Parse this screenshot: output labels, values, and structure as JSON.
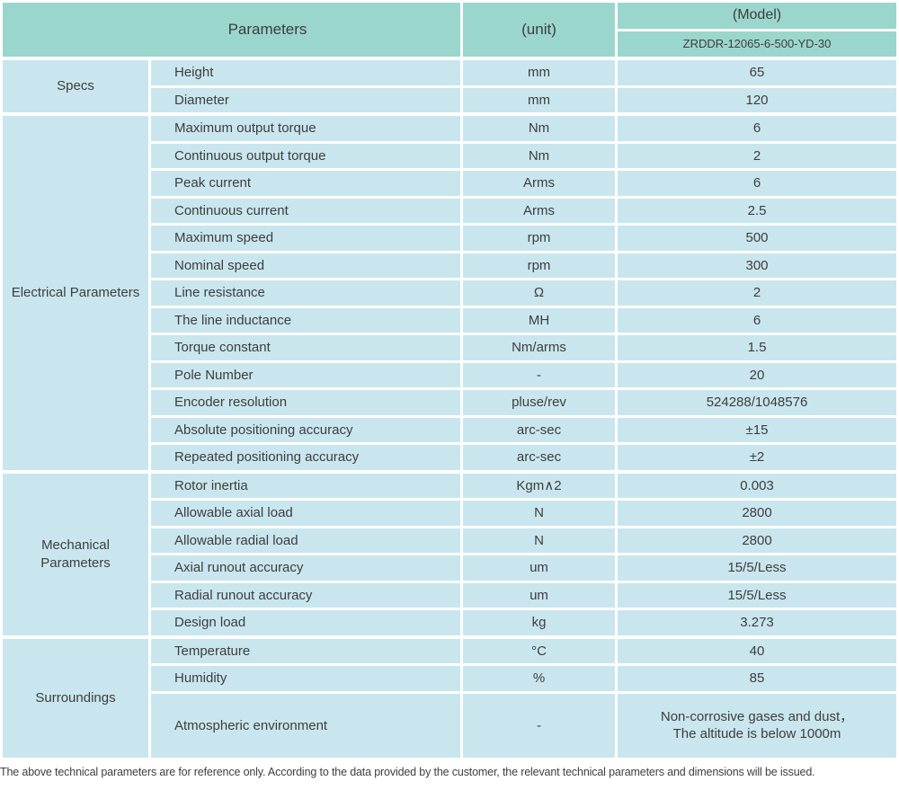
{
  "table": {
    "header": {
      "parameters_label": "Parameters",
      "unit_label": "(unit)",
      "model_label": "(Model)",
      "model_value": "ZRDDR-12065-6-500-YD-30"
    },
    "sections": [
      {
        "name": "Specs",
        "rows": [
          {
            "param": "Height",
            "unit": "mm",
            "value": "65"
          },
          {
            "param": "Diameter",
            "unit": "mm",
            "value": "120"
          }
        ]
      },
      {
        "name": "Electrical Parameters",
        "rows": [
          {
            "param": "Maximum output torque",
            "unit": "Nm",
            "value": "6"
          },
          {
            "param": "Continuous output torque",
            "unit": "Nm",
            "value": "2"
          },
          {
            "param": "Peak current",
            "unit": "Arms",
            "value": "6"
          },
          {
            "param": "Continuous current",
            "unit": "Arms",
            "value": "2.5"
          },
          {
            "param": "Maximum speed",
            "unit": "rpm",
            "value": "500"
          },
          {
            "param": "Nominal speed",
            "unit": "rpm",
            "value": "300"
          },
          {
            "param": "Line resistance",
            "unit": "Ω",
            "value": "2"
          },
          {
            "param": "The line inductance",
            "unit": "MH",
            "value": "6"
          },
          {
            "param": "Torque constant",
            "unit": "Nm/arms",
            "value": "1.5"
          },
          {
            "param": "Pole Number",
            "unit": "-",
            "value": "20"
          },
          {
            "param": "Encoder resolution",
            "unit": "pluse/rev",
            "value": "524288/1048576"
          },
          {
            "param": "Absolute positioning accuracy",
            "unit": "arc-sec",
            "value": "±15"
          },
          {
            "param": "Repeated positioning accuracy",
            "unit": "arc-sec",
            "value": "±2"
          }
        ]
      },
      {
        "name": "Mechanical Parameters",
        "rows": [
          {
            "param": "Rotor inertia",
            "unit": "Kgm∧2",
            "value": "0.003"
          },
          {
            "param": "Allowable axial load",
            "unit": "N",
            "value": "2800"
          },
          {
            "param": "Allowable radial load",
            "unit": "N",
            "value": "2800"
          },
          {
            "param": "Axial runout accuracy",
            "unit": "um",
            "value": "15/5/Less"
          },
          {
            "param": "Radial runout accuracy",
            "unit": "um",
            "value": "15/5/Less"
          },
          {
            "param": "Design load",
            "unit": "kg",
            "value": "3.273"
          }
        ]
      },
      {
        "name": "Surroundings",
        "rows": [
          {
            "param": "Temperature",
            "unit": "°C",
            "value": "40"
          },
          {
            "param": "Humidity",
            "unit": "%",
            "value": "85"
          },
          {
            "param": "Atmospheric environment",
            "unit": "-",
            "value": "Non-corrosive gases and dust，\nThe altitude is below 1000m",
            "tall": true
          }
        ]
      }
    ]
  },
  "footer_note": "The above technical parameters are for reference only. According to the data provided by the customer, the relevant technical parameters and dimensions will be issued.",
  "colors": {
    "header_bg": "#9ad6cc",
    "row_bg": "#c9e6ef",
    "text": "#3d3d3d"
  }
}
